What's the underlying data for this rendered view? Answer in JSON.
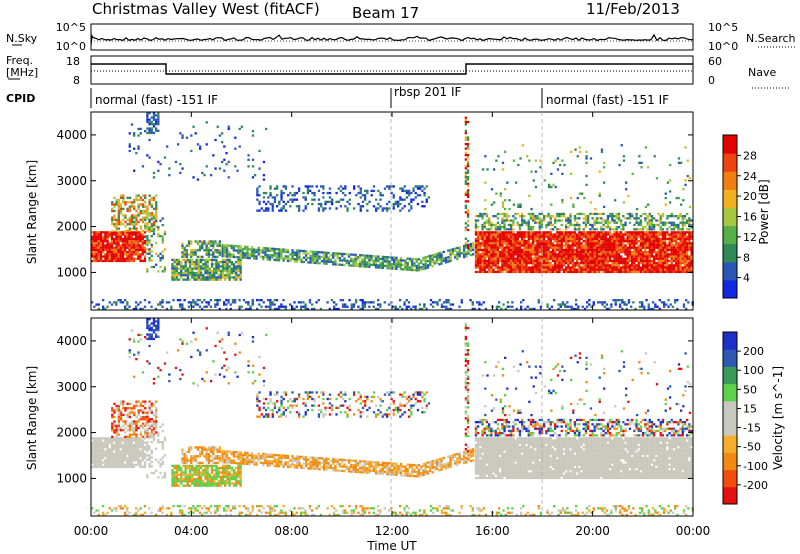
{
  "header": {
    "station": "Christmas Valley West (fitACF)",
    "beam": "Beam 17",
    "date": "11/Feb/2013"
  },
  "strips": {
    "nsky_label": "N.Sky",
    "nsearch_label": "N.Search",
    "freq_label_1": "Freq.",
    "freq_label_2": "[MHz]",
    "nave_label": "Nave",
    "cpid_label": "CPID",
    "nsky_ticks": [
      "10^5",
      "10^0"
    ],
    "nsearch_ticks": [
      "10^5",
      "10^0"
    ],
    "freq_ticks": [
      "18",
      "8"
    ],
    "nave_ticks": [
      "60",
      "0"
    ],
    "cpid_segments": [
      {
        "label": "normal (fast) -151 IF",
        "start": 0,
        "end": 12
      },
      {
        "label": "rbsp 201 IF",
        "start": 12,
        "end": 18
      },
      {
        "label": "normal (fast) -151 IF",
        "start": 18,
        "end": 24
      }
    ]
  },
  "colors": {
    "power": [
      "#1428e0",
      "#2a57b8",
      "#2f8a55",
      "#56b04a",
      "#a6c83c",
      "#f0b020",
      "#f07f10",
      "#ee4410",
      "#e50000"
    ],
    "velocity": [
      "#e51010",
      "#f24d0d",
      "#f28a12",
      "#f5ad2a",
      "#c8c8bd",
      "#c8c8bd",
      "#5bd24a",
      "#3a9a5a",
      "#2b5ab0",
      "#1d2fc8"
    ]
  },
  "chart_data": [
    {
      "type": "heatmap",
      "name": "power",
      "ylabel": "Slant Range [km]",
      "colorbar_label": "Power [dB]",
      "colorbar_ticks": [
        "4",
        "8",
        "12",
        "16",
        "20",
        "24",
        "28"
      ],
      "ylim": [
        180,
        4500
      ],
      "yticks": [
        "1000",
        "2000",
        "3000",
        "4000"
      ],
      "yticks_values": [
        1000,
        2000,
        3000,
        4000
      ],
      "xlim": [
        0,
        24
      ]
    },
    {
      "type": "heatmap",
      "name": "velocity",
      "ylabel": "Slant Range [km]",
      "colorbar_label": "Velocity [m s^-1]",
      "colorbar_ticks": [
        "-200",
        "-100",
        "-50",
        "-15",
        "15",
        "50",
        "100",
        "200"
      ],
      "ylim": [
        180,
        4500
      ],
      "yticks": [
        "1000",
        "2000",
        "3000",
        "4000"
      ],
      "yticks_values": [
        1000,
        2000,
        3000,
        4000
      ],
      "xlim": [
        0,
        24
      ]
    }
  ],
  "xaxis": {
    "label": "Time UT",
    "ticks": [
      "00:00",
      "04:00",
      "08:00",
      "12:00",
      "16:00",
      "20:00",
      "00:00"
    ]
  }
}
